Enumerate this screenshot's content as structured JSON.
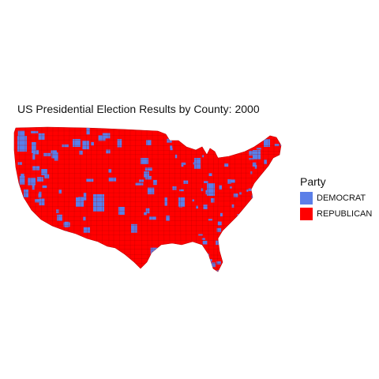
{
  "map": {
    "title": "US Presidential Election Results by County: 2000",
    "legend": {
      "title": "Party",
      "entries": [
        {
          "label": "DEMOCRAT",
          "color": "#5b7fe8"
        },
        {
          "label": "REPUBLICAN",
          "color": "#ff0000"
        }
      ]
    },
    "colors": {
      "democrat": "#5b7fe8",
      "republican": "#ff0000",
      "border": "#b00000"
    }
  }
}
